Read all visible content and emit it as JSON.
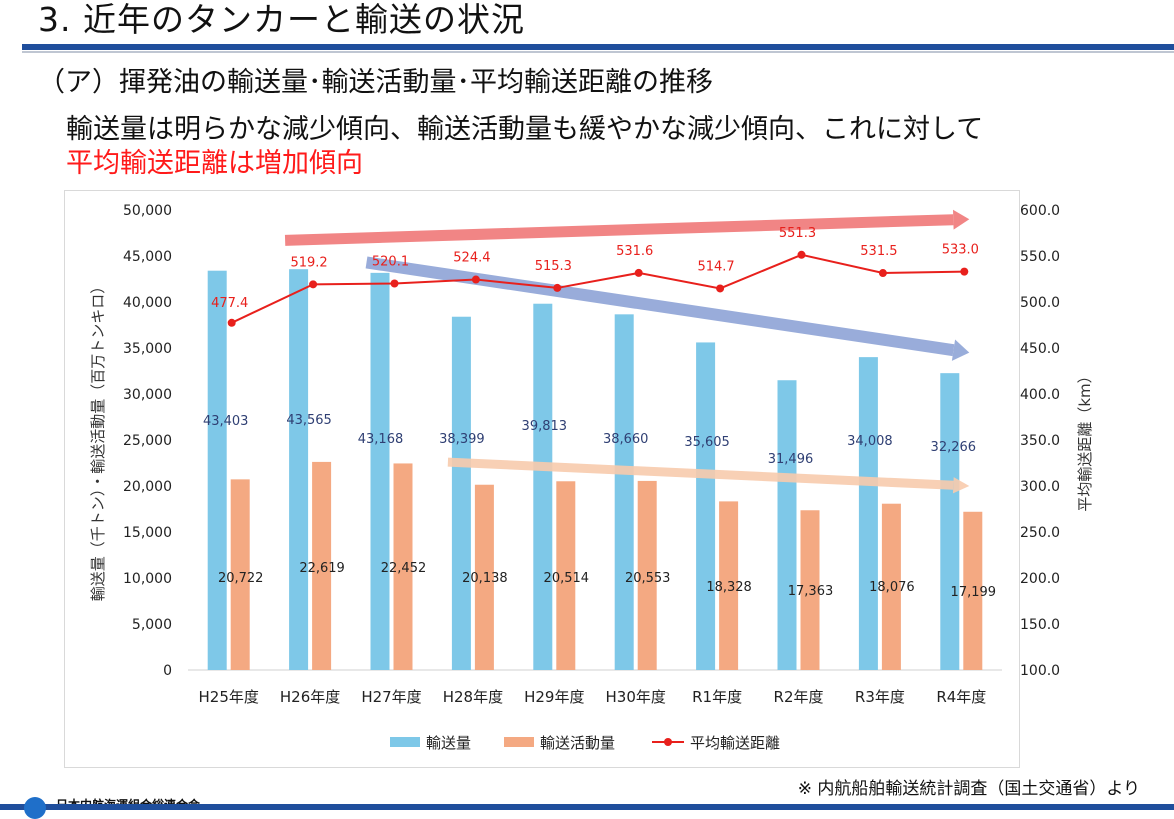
{
  "header": {
    "title": "3. 近年のタンカーと輸送の状況"
  },
  "section": {
    "heading": "（ア）揮発油の輸送量･輸送活動量･平均輸送距離の推移",
    "summary_line1": "輸送量は明らかな減少傾向、輸送活動量も緩やかな減少傾向、これに対して",
    "summary_line2": "平均輸送距離は増加傾向"
  },
  "colors": {
    "heading_rule": "#1f4e9c",
    "highlight_text": "#ff1a1a",
    "volume_bar": "#7ec8e8",
    "activity_bar": "#f4a982",
    "distance_line": "#e8201c",
    "trend_up": "#f07878",
    "trend_down": "#8ea4d6",
    "trend_flat": "#f8cbad"
  },
  "chart_data": {
    "type": "bar",
    "categories": [
      "H25年度",
      "H26年度",
      "H27年度",
      "H28年度",
      "H29年度",
      "H30年度",
      "R1年度",
      "R2年度",
      "R3年度",
      "R4年度"
    ],
    "series": [
      {
        "name": "輸送量",
        "kind": "bar",
        "axis": "left",
        "values": [
          43403,
          43565,
          43168,
          38399,
          39813,
          38660,
          35605,
          31496,
          34008,
          32266
        ],
        "value_labels": [
          "43,403",
          "43,565",
          "43,168",
          "38,399",
          "39,813",
          "38,660",
          "35,605",
          "31,496",
          "34,008",
          "32,266"
        ]
      },
      {
        "name": "輸送活動量",
        "kind": "bar",
        "axis": "left",
        "values": [
          20722,
          22619,
          22452,
          20138,
          20514,
          20553,
          18328,
          17363,
          18076,
          17199
        ],
        "value_labels": [
          "20,722",
          "22,619",
          "22,452",
          "20,138",
          "20,514",
          "20,553",
          "18,328",
          "17,363",
          "18,076",
          "17,199"
        ]
      },
      {
        "name": "平均輸送距離",
        "kind": "line",
        "axis": "right",
        "values": [
          477.4,
          519.2,
          520.1,
          524.4,
          515.3,
          531.6,
          514.7,
          551.3,
          531.5,
          533.0
        ],
        "value_labels": [
          "477.4",
          "519.2",
          "520.1",
          "524.4",
          "515.3",
          "531.6",
          "514.7",
          "551.3",
          "531.5",
          "533.0"
        ]
      }
    ],
    "ylabel_left": "輸送量（千トン）・輸送活動量（百万トンキロ）",
    "ylabel_right": "平均輸送距離（km）",
    "ylim_left": [
      0,
      50000
    ],
    "ylim_right": [
      100,
      600
    ],
    "yticks_left": [
      "0",
      "5,000",
      "10,000",
      "15,000",
      "20,000",
      "25,000",
      "30,000",
      "35,000",
      "40,000",
      "45,000",
      "50,000"
    ],
    "yticks_right": [
      "100.0",
      "150.0",
      "200.0",
      "250.0",
      "300.0",
      "350.0",
      "400.0",
      "450.0",
      "500.0",
      "550.0",
      "600.0"
    ],
    "grid": false,
    "legend_position": "bottom",
    "trend_arrows": [
      {
        "name": "distance-trend",
        "direction": "up",
        "from": {
          "category": "H26年度",
          "right_axis": 567
        },
        "to": {
          "category": "R4年度",
          "right_axis": 590
        }
      },
      {
        "name": "volume-trend",
        "direction": "down",
        "from": {
          "category": "H27年度",
          "right_axis": 543
        },
        "to": {
          "category": "R4年度",
          "right_axis": 445
        }
      },
      {
        "name": "activity-trend",
        "direction": "down",
        "from": {
          "category": "H28年度",
          "right_axis": 326
        },
        "to": {
          "category": "R4年度",
          "right_axis": 300
        }
      }
    ]
  },
  "footer": {
    "source_note": "※ 内航船舶輸送統計調査（国土交通省）より",
    "organization": "日本内航海運組合総連合会"
  }
}
